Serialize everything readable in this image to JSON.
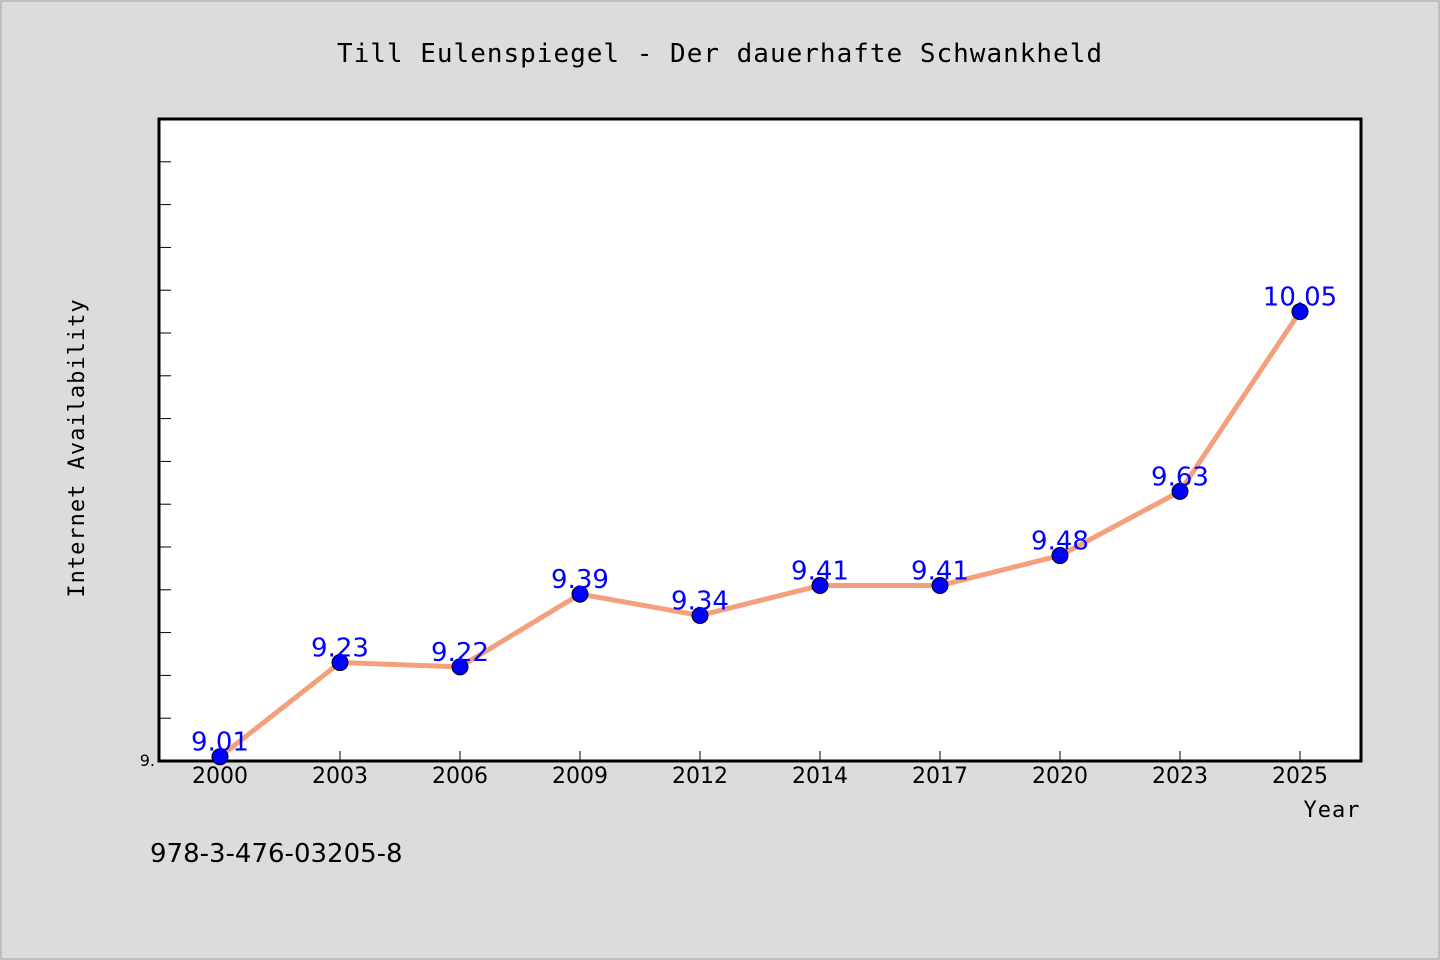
{
  "chart_data": {
    "type": "line",
    "title": "Till Eulenspiegel - Der dauerhafte Schwankheld",
    "xlabel": "Year",
    "ylabel": "Internet Availability",
    "x": [
      "2000",
      "2003",
      "2006",
      "2009",
      "2012",
      "2014",
      "2017",
      "2020",
      "2023",
      "2025"
    ],
    "values": [
      9.01,
      9.23,
      9.22,
      9.39,
      9.34,
      9.41,
      9.41,
      9.48,
      9.63,
      10.05
    ],
    "data_labels": [
      "9.01",
      "9.23",
      "9.22",
      "9.39",
      "9.34",
      "9.41",
      "9.41",
      "9.48",
      "9.63",
      "10.05"
    ],
    "y_tick_label": "9.",
    "ylim": [
      9.0,
      10.5
    ],
    "grid": false,
    "legend": "none",
    "line_color": "#f4a07c",
    "marker_color": "#0000ff",
    "label_color": "#0000ff"
  },
  "footer": {
    "isbn": "978-3-476-03205-8"
  }
}
